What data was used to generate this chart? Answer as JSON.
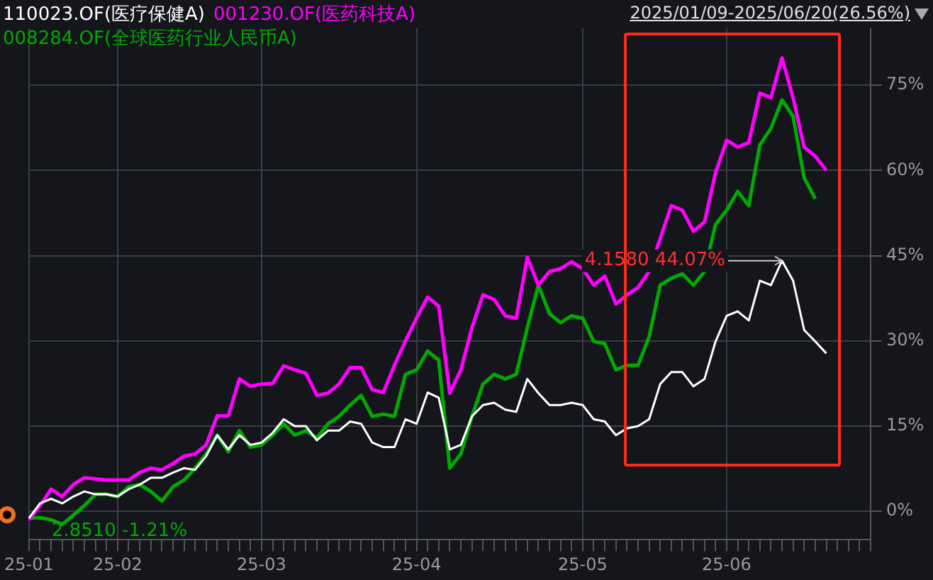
{
  "chart_data": {
    "type": "line",
    "subtitle": "2025/01/09-2025/06/20(26.56%)",
    "legend": "top left",
    "grid": true,
    "marker": "none",
    "line_style": "solid",
    "tick_labels": "xy",
    "categories": [
      "25-01",
      null,
      null,
      null,
      null,
      null,
      null,
      null,
      "25-02",
      null,
      null,
      null,
      null,
      null,
      null,
      null,
      null,
      null,
      null,
      null,
      null,
      "25-03",
      null,
      null,
      null,
      null,
      null,
      null,
      null,
      null,
      null,
      null,
      null,
      null,
      null,
      "25-04",
      null,
      null,
      null,
      null,
      null,
      null,
      null,
      null,
      null,
      null,
      null,
      null,
      null,
      null,
      "25-05",
      null,
      null,
      null,
      null,
      null,
      null,
      null,
      null,
      null,
      null,
      null,
      null,
      "25-06",
      null,
      null,
      null,
      null,
      null,
      null,
      null,
      null,
      null,
      null,
      null,
      null,
      null
    ],
    "ylim": [
      -5,
      85
    ],
    "yticks": [
      {
        "value": 0,
        "label": "0%"
      },
      {
        "value": 15,
        "label": "15%"
      },
      {
        "value": 30,
        "label": "30%"
      },
      {
        "value": 45,
        "label": "45%"
      },
      {
        "value": 60,
        "label": "60%"
      },
      {
        "value": 75,
        "label": "75%"
      }
    ],
    "series": [
      {
        "name": "110023.OF(医疗保健A)",
        "color": "#ffffff",
        "values": [
          -1.2,
          1.4,
          2.2,
          1.4,
          2.6,
          3.5,
          3.0,
          3.0,
          2.6,
          3.9,
          4.7,
          5.9,
          5.9,
          6.8,
          7.6,
          7.3,
          9.7,
          13.4,
          10.9,
          13.4,
          11.7,
          12.1,
          13.8,
          16.2,
          15,
          15,
          12.5,
          14.2,
          14.2,
          15.8,
          15.4,
          12.1,
          11.3,
          11.3,
          16.2,
          15.4,
          20.9,
          20,
          10.9,
          11.7,
          16.7,
          18.7,
          19.1,
          17.9,
          17.5,
          23.3,
          20.8,
          18.7,
          18.7,
          19.1,
          18.7,
          16.2,
          15.8,
          13.4,
          14.6,
          15,
          16.2,
          22.4,
          24.5,
          24.5,
          22,
          23.3,
          29.9,
          34.4,
          35.2,
          33.6,
          40.6,
          39.8,
          44.1,
          40.6,
          31.9,
          29.9,
          27.8,
          null,
          null,
          null,
          null
        ]
      },
      {
        "name": "001230.OF(医药科技A)",
        "color": "#ff00ff",
        "values": [
          -1.5,
          1.0,
          3.9,
          2.6,
          4.7,
          5.9,
          5.7,
          5.5,
          5.5,
          5.5,
          6.8,
          7.6,
          7.3,
          8.4,
          9.7,
          10.1,
          11.7,
          16.8,
          16.8,
          23.3,
          22,
          22.4,
          22.5,
          25.6,
          24.9,
          24.3,
          20.4,
          20.8,
          22.4,
          25.3,
          25.3,
          21.4,
          20.9,
          25.7,
          30,
          34,
          37.7,
          36.1,
          20.8,
          24.9,
          32.3,
          38.1,
          37.3,
          34.4,
          34,
          44.7,
          39.8,
          42.2,
          42.7,
          43.9,
          42.7,
          39.8,
          41.4,
          36.5,
          38.1,
          39.4,
          42.2,
          48,
          53.8,
          53,
          49.3,
          50.9,
          59.6,
          65.3,
          64.1,
          64.9,
          73.6,
          72.8,
          79.8,
          72.8,
          64.1,
          62.5,
          60,
          null,
          null,
          null,
          null
        ]
      },
      {
        "name": "008284.OF(全球医药行业人民币A)",
        "color": "#00aa00",
        "values": [
          -1.2,
          -1.1,
          -1.5,
          -2.3,
          -0.7,
          1,
          3.0,
          3.0,
          2.6,
          4.3,
          4.7,
          3.5,
          1.8,
          4.3,
          5.5,
          7.6,
          10.1,
          13.4,
          10.5,
          14.2,
          11.3,
          11.7,
          13.4,
          15.4,
          13.4,
          14.2,
          12.9,
          15.4,
          16.7,
          18.7,
          20.4,
          16.7,
          17.1,
          16.7,
          24.1,
          24.9,
          28.2,
          26.6,
          7.6,
          10.1,
          16.7,
          22.4,
          24.1,
          23.3,
          24.1,
          32.3,
          39.8,
          34.8,
          33.2,
          34.4,
          34,
          29.9,
          29.5,
          24.9,
          25.7,
          25.7,
          30.7,
          39.8,
          41,
          41.8,
          39.8,
          42.2,
          50.5,
          53,
          56.3,
          53.8,
          64.5,
          67.4,
          72.4,
          69.5,
          58.7,
          55,
          null,
          null,
          null,
          null,
          null
        ]
      }
    ],
    "annotations": [
      {
        "text": "4.1580 44.07%",
        "y": 44.1
      },
      "2.8510 -1.21%"
    ]
  }
}
